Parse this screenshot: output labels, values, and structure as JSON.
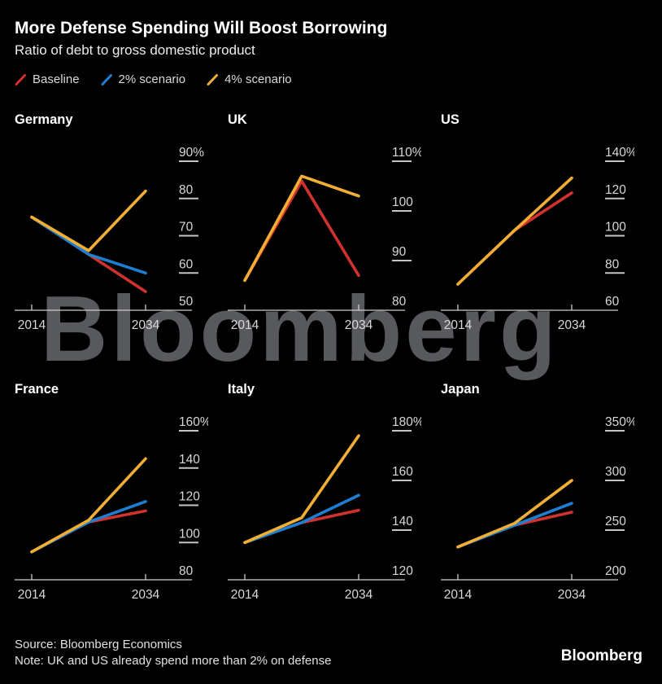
{
  "header": {
    "title": "More Defense Spending Will Boost Borrowing",
    "subtitle": "Ratio of debt to gross domestic product"
  },
  "legend": [
    {
      "label": "Baseline",
      "color": "#d2322d",
      "icon": "slash-icon"
    },
    {
      "label": "2% scenario",
      "color": "#1e7fd2",
      "icon": "slash-icon"
    },
    {
      "label": "4% scenario",
      "color": "#f2af34",
      "icon": "slash-icon"
    }
  ],
  "colors": {
    "background": "#000000",
    "baseline": "#d2322d",
    "two_percent": "#1e7fd2",
    "four_percent": "#f2af34",
    "axis_line": "#cccccc",
    "tick_text": "#d8d8d8",
    "watermark": "#57595d"
  },
  "watermark_text": "Bloomberg",
  "footer": {
    "source": "Source: Bloomberg Economics",
    "note": "Note: UK and US already spend more than 2% on defense",
    "logo": "Bloomberg"
  },
  "chart_data": [
    {
      "type": "line",
      "title": "Germany",
      "x": [
        2014,
        2024,
        2034
      ],
      "x_tick_labels": [
        "2014",
        "2034"
      ],
      "ylim": [
        50,
        90
      ],
      "y_ticks": [
        90,
        80,
        70,
        60,
        50
      ],
      "y_tick_labels": [
        "90%",
        "80",
        "70",
        "60",
        "50"
      ],
      "series": [
        {
          "name": "Baseline",
          "color": "#d2322d",
          "values": [
            75,
            65,
            55
          ]
        },
        {
          "name": "2% scenario",
          "color": "#1e7fd2",
          "values": [
            75,
            65,
            60
          ]
        },
        {
          "name": "4% scenario",
          "color": "#f2af34",
          "values": [
            75,
            66,
            82
          ]
        }
      ]
    },
    {
      "type": "line",
      "title": "UK",
      "x": [
        2014,
        2024,
        2034
      ],
      "x_tick_labels": [
        "2014",
        "2034"
      ],
      "ylim": [
        80,
        110
      ],
      "y_ticks": [
        110,
        100,
        90,
        80
      ],
      "y_tick_labels": [
        "110%",
        "100",
        "90",
        "80"
      ],
      "series": [
        {
          "name": "Baseline",
          "color": "#d2322d",
          "values": [
            86,
            106,
            87
          ]
        },
        {
          "name": "4% scenario",
          "color": "#f2af34",
          "values": [
            86,
            107,
            103
          ]
        }
      ]
    },
    {
      "type": "line",
      "title": "US",
      "x": [
        2014,
        2024,
        2034
      ],
      "x_tick_labels": [
        "2014",
        "2034"
      ],
      "ylim": [
        60,
        140
      ],
      "y_ticks": [
        140,
        120,
        100,
        80,
        60
      ],
      "y_tick_labels": [
        "140%",
        "120",
        "100",
        "80",
        "60"
      ],
      "series": [
        {
          "name": "Baseline",
          "color": "#d2322d",
          "values": [
            74,
            103,
            123
          ]
        },
        {
          "name": "4% scenario",
          "color": "#f2af34",
          "values": [
            74,
            103,
            131
          ]
        }
      ]
    },
    {
      "type": "line",
      "title": "France",
      "x": [
        2014,
        2024,
        2034
      ],
      "x_tick_labels": [
        "2014",
        "2034"
      ],
      "ylim": [
        80,
        160
      ],
      "y_ticks": [
        160,
        140,
        120,
        100,
        80
      ],
      "y_tick_labels": [
        "160%",
        "140",
        "120",
        "100",
        "80"
      ],
      "series": [
        {
          "name": "Baseline",
          "color": "#d2322d",
          "values": [
            95,
            111,
            117
          ]
        },
        {
          "name": "2% scenario",
          "color": "#1e7fd2",
          "values": [
            95,
            111,
            122
          ]
        },
        {
          "name": "4% scenario",
          "color": "#f2af34",
          "values": [
            95,
            112,
            145
          ]
        }
      ]
    },
    {
      "type": "line",
      "title": "Italy",
      "x": [
        2014,
        2024,
        2034
      ],
      "x_tick_labels": [
        "2014",
        "2034"
      ],
      "ylim": [
        120,
        180
      ],
      "y_ticks": [
        180,
        160,
        140,
        120
      ],
      "y_tick_labels": [
        "180%",
        "160",
        "140",
        "120"
      ],
      "series": [
        {
          "name": "Baseline",
          "color": "#d2322d",
          "values": [
            135,
            143,
            148
          ]
        },
        {
          "name": "2% scenario",
          "color": "#1e7fd2",
          "values": [
            135,
            143,
            154
          ]
        },
        {
          "name": "4% scenario",
          "color": "#f2af34",
          "values": [
            135,
            145,
            178
          ]
        }
      ]
    },
    {
      "type": "line",
      "title": "Japan",
      "x": [
        2014,
        2024,
        2034
      ],
      "x_tick_labels": [
        "2014",
        "2034"
      ],
      "ylim": [
        200,
        350
      ],
      "y_ticks": [
        350,
        300,
        250,
        200
      ],
      "y_tick_labels": [
        "350%",
        "300",
        "250",
        "200"
      ],
      "series": [
        {
          "name": "Baseline",
          "color": "#d2322d",
          "values": [
            233,
            255,
            268
          ]
        },
        {
          "name": "2% scenario",
          "color": "#1e7fd2",
          "values": [
            233,
            255,
            277
          ]
        },
        {
          "name": "4% scenario",
          "color": "#f2af34",
          "values": [
            233,
            257,
            300
          ]
        }
      ]
    }
  ]
}
